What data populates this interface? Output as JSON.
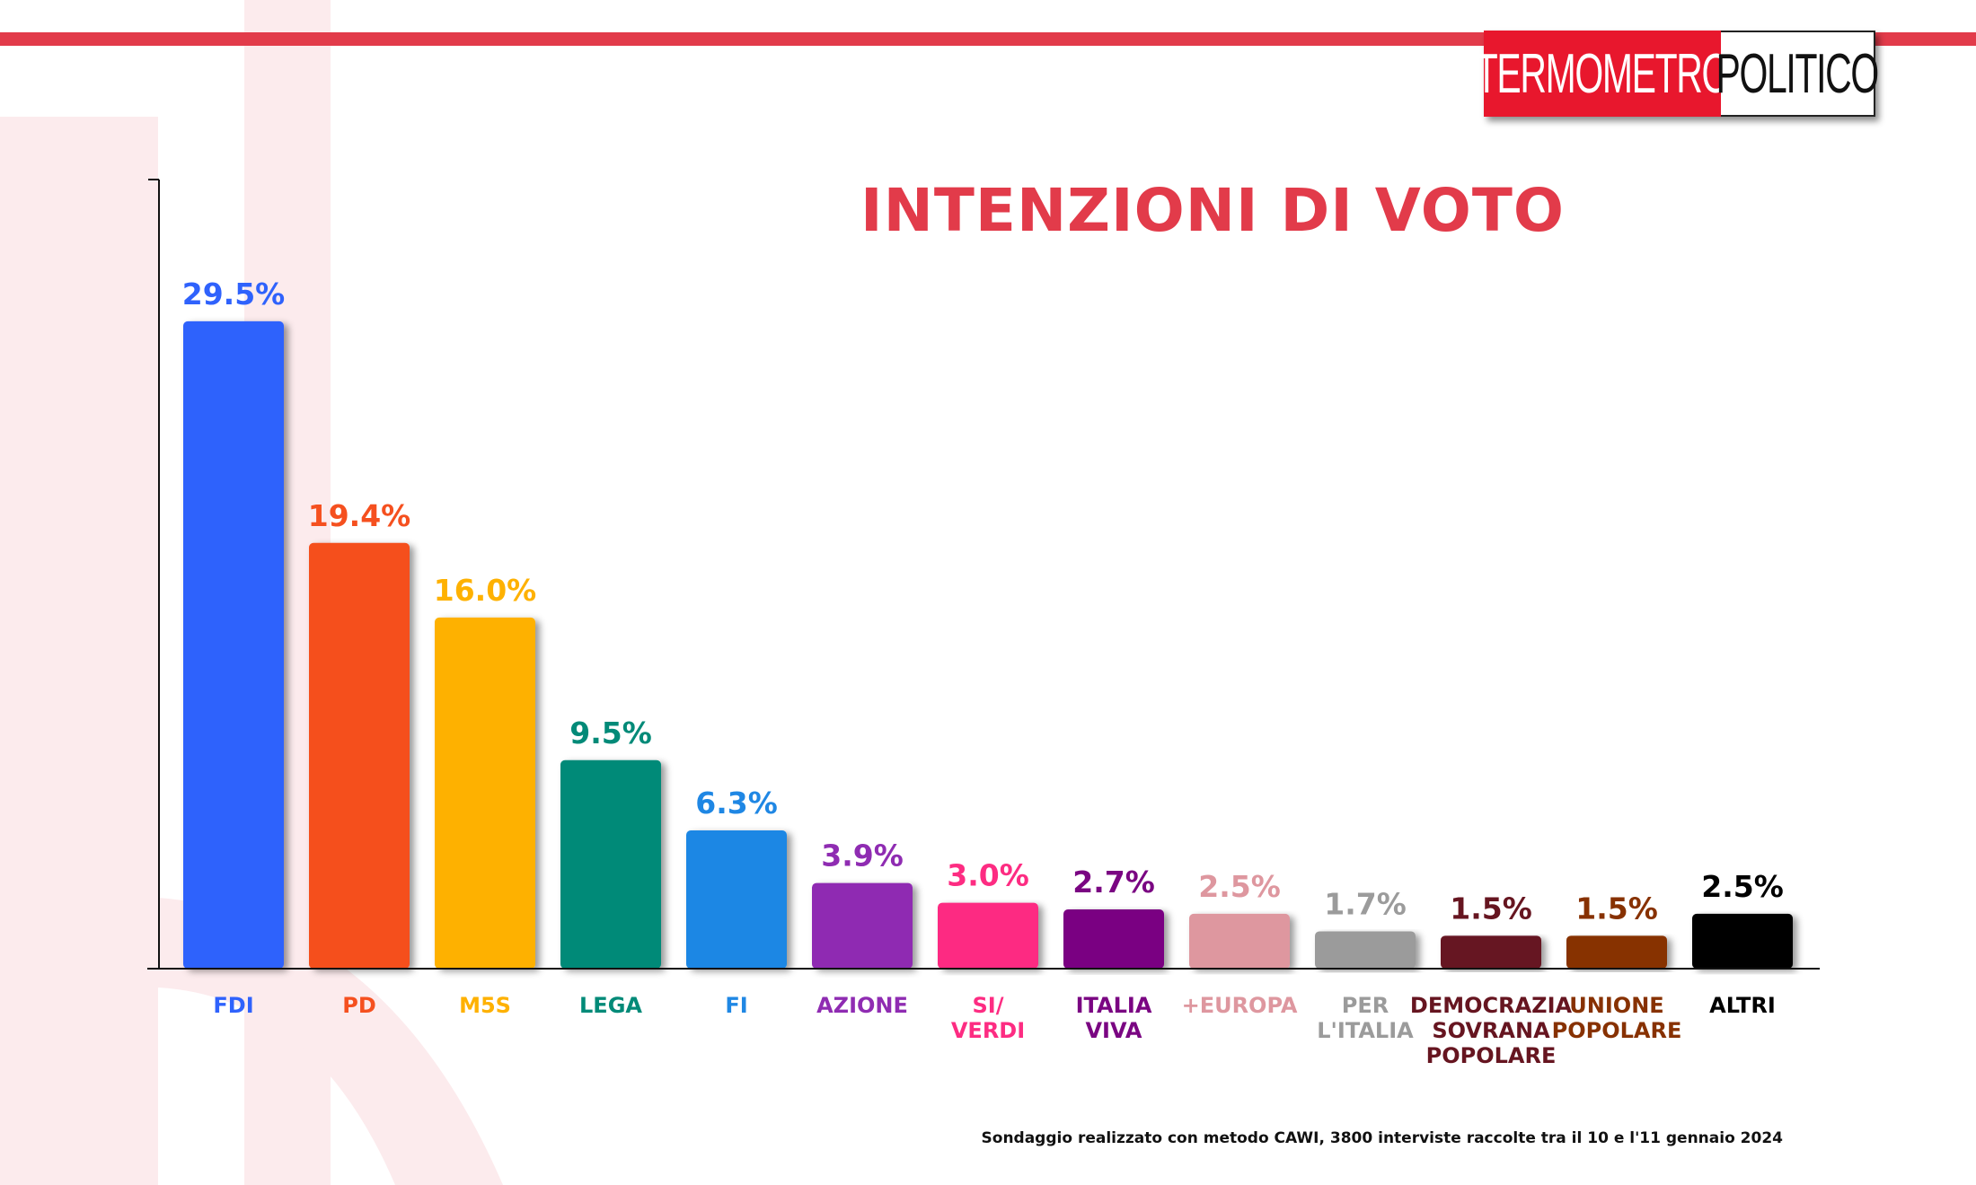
{
  "brand": {
    "logo_left": "TERMOMETRO",
    "logo_right": "POLITICO",
    "accent": "#e23b4a",
    "logo_red": "#e8172d"
  },
  "footnote": "Sondaggio realizzato con metodo CAWI, 3800 interviste raccolte tra il 10 e l'11 gennaio 2024",
  "chart_data": {
    "type": "bar",
    "title": "INTENZIONI DI VOTO",
    "xlabel": "",
    "ylabel": "",
    "ylim": [
      0,
      36
    ],
    "grid": false,
    "categories": [
      [
        "FDI"
      ],
      [
        "PD"
      ],
      [
        "M5S"
      ],
      [
        "LEGA"
      ],
      [
        "FI"
      ],
      [
        "AZIONE"
      ],
      [
        "SI/",
        "VERDI"
      ],
      [
        "ITALIA",
        "VIVA"
      ],
      [
        "+EUROPA"
      ],
      [
        "PER",
        "L'ITALIA"
      ],
      [
        "DEMOCRAZIA",
        "SOVRANA",
        "POPOLARE"
      ],
      [
        "UNIONE",
        "POPOLARE"
      ],
      [
        "ALTRI"
      ]
    ],
    "values": [
      29.5,
      19.4,
      16.0,
      9.5,
      6.3,
      3.9,
      3.0,
      2.7,
      2.5,
      1.7,
      1.5,
      1.5,
      2.5
    ],
    "value_labels": [
      "29.5%",
      "19.4%",
      "16.0%",
      "9.5%",
      "6.3%",
      "3.9%",
      "3.0%",
      "2.7%",
      "2.5%",
      "1.7%",
      "1.5%",
      "1.5%",
      "2.5%"
    ],
    "colors": [
      "#2f62fc",
      "#f5501f",
      "#feb101",
      "#028a78",
      "#1f87e4",
      "#8f2cb2",
      "#fd2c82",
      "#7a0582",
      "#de979f",
      "#9b9b9b",
      "#661520",
      "#873101",
      "#000000"
    ],
    "label_colors": [
      "#2f62fc",
      "#f5501f",
      "#feb101",
      "#028a78",
      "#1f87e4",
      "#8f2cb2",
      "#fd2c82",
      "#7a0582",
      "#de979f",
      "#9b9b9b",
      "#661520",
      "#873101",
      "#000000"
    ]
  }
}
